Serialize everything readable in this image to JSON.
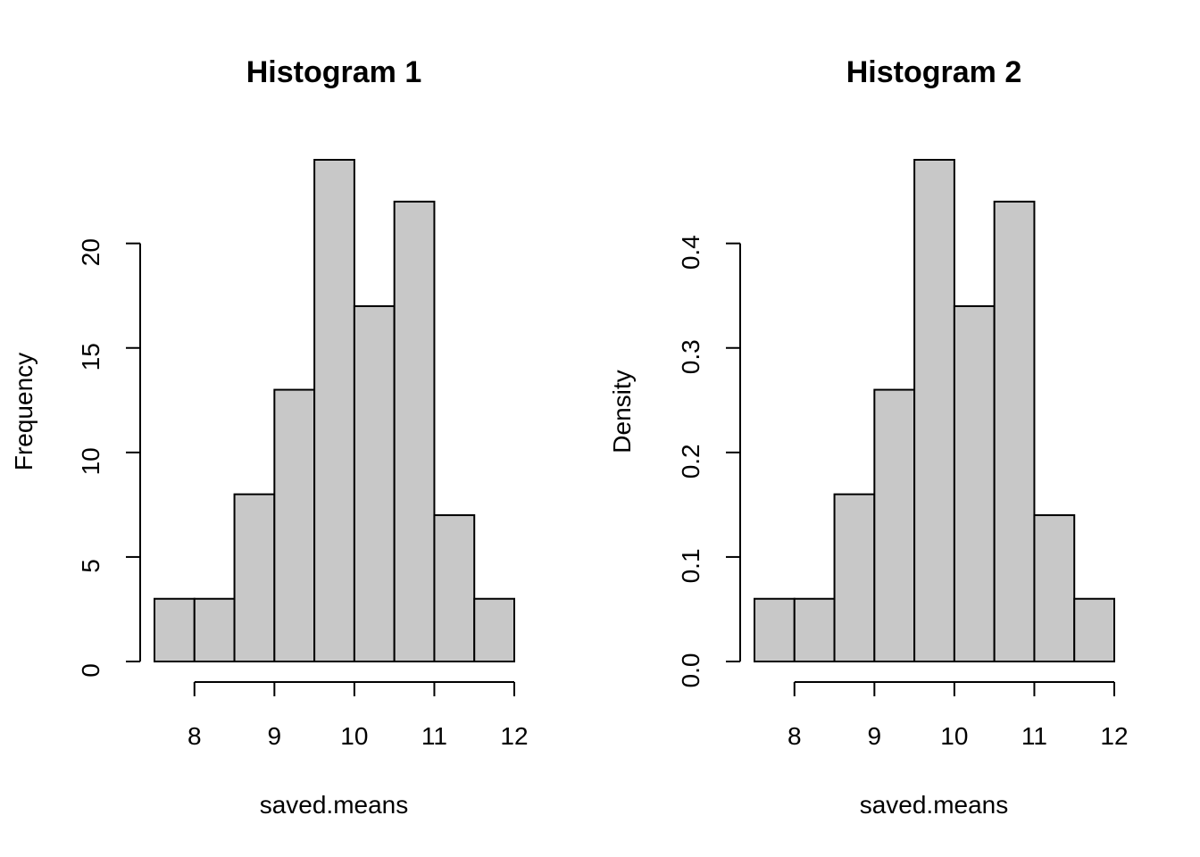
{
  "chart_data": [
    {
      "type": "bar",
      "title": "Histogram 1",
      "xlabel": "saved.means",
      "ylabel": "Frequency",
      "bins": [
        [
          7.5,
          8
        ],
        [
          8,
          8.5
        ],
        [
          8.5,
          9
        ],
        [
          9,
          9.5
        ],
        [
          9.5,
          10
        ],
        [
          10,
          10.5
        ],
        [
          10.5,
          11
        ],
        [
          11,
          11.5
        ],
        [
          11.5,
          12
        ]
      ],
      "values": [
        3,
        3,
        8,
        13,
        24,
        17,
        22,
        7,
        3
      ],
      "xlim": [
        7.5,
        12
      ],
      "ylim": [
        0,
        24
      ],
      "x_ticks": [
        8,
        9,
        10,
        11,
        12
      ],
      "y_ticks": [
        0,
        5,
        10,
        15,
        20
      ],
      "bar_color": "#c8c8c8"
    },
    {
      "type": "bar",
      "title": "Histogram 2",
      "xlabel": "saved.means",
      "ylabel": "Density",
      "bins": [
        [
          7.5,
          8
        ],
        [
          8,
          8.5
        ],
        [
          8.5,
          9
        ],
        [
          9,
          9.5
        ],
        [
          9.5,
          10
        ],
        [
          10,
          10.5
        ],
        [
          10.5,
          11
        ],
        [
          11,
          11.5
        ],
        [
          11.5,
          12
        ]
      ],
      "values": [
        0.06,
        0.06,
        0.16,
        0.26,
        0.48,
        0.34,
        0.44,
        0.14,
        0.06
      ],
      "xlim": [
        7.5,
        12
      ],
      "ylim": [
        0,
        0.48
      ],
      "x_ticks": [
        8,
        9,
        10,
        11,
        12
      ],
      "y_ticks": [
        "0.0",
        "0.1",
        "0.2",
        "0.3",
        "0.4"
      ],
      "bar_color": "#c8c8c8"
    }
  ]
}
